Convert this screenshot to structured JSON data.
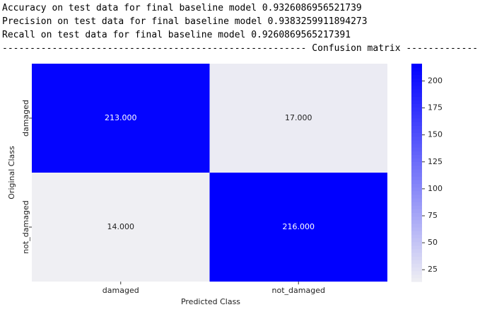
{
  "output_lines": [
    "Accuracy on test data for final baseline model 0.9326086956521739",
    "Precision on test data for final baseline model 0.9383259911894273",
    "Recall on test data for final baseline model 0.9260869565217391",
    "------------------------------------------------------- Confusion matrix -------------"
  ],
  "chart_data": {
    "type": "heatmap",
    "x_label": "Predicted Class",
    "y_label": "Original Class",
    "x_categories": [
      "damaged",
      "not_damaged"
    ],
    "y_categories": [
      "damaged",
      "not_damaged"
    ],
    "values": [
      [
        213,
        17
      ],
      [
        14,
        216
      ]
    ],
    "value_labels": [
      [
        "213.000",
        "17.000"
      ],
      [
        "14.000",
        "216.000"
      ]
    ],
    "colormap": [
      "#efeff3",
      "#0000ff"
    ],
    "clim": [
      14,
      216
    ],
    "cticks": [
      25,
      50,
      75,
      100,
      125,
      150,
      175,
      200
    ]
  }
}
